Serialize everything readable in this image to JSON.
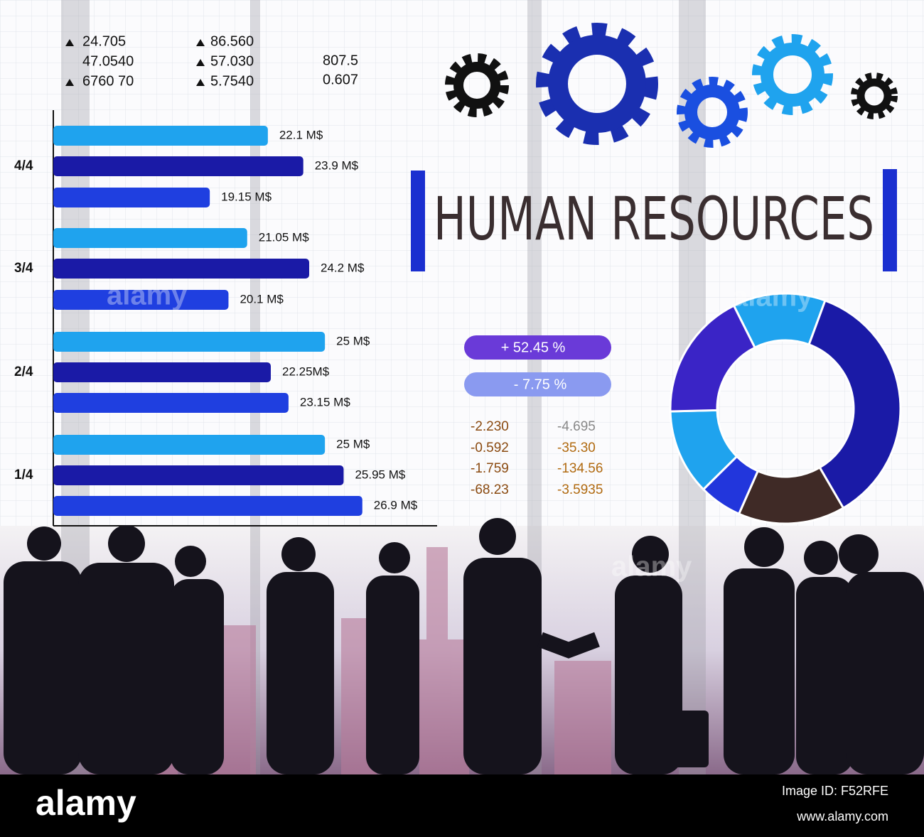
{
  "tickers": {
    "col1": [
      "24.705",
      "47.0540",
      "6760 70"
    ],
    "col2": [
      "86.560",
      "57.030",
      "5.7540"
    ],
    "col3": [
      "807.5",
      "0.607"
    ]
  },
  "chart_data": [
    {
      "type": "bar",
      "orientation": "horizontal",
      "categories": [
        null,
        "4/4",
        null,
        null,
        "3/4",
        null,
        null,
        "2/4",
        null,
        null,
        "1/4",
        null
      ],
      "values": [
        22.1,
        23.9,
        19.15,
        21.05,
        24.2,
        20.1,
        25,
        22.25,
        23.15,
        25,
        25.95,
        26.9
      ],
      "value_labels": [
        "22.1 M$",
        "23.9 M$",
        "19.15 M$",
        "21.05 M$",
        "24.2 M$",
        "20.1 M$",
        "25 M$",
        "22.25M$",
        "23.15 M$",
        "25 M$",
        "25.95 M$",
        "26.9 M$"
      ],
      "colors": [
        "#1fa3ee",
        "#1a1aa6",
        "#1f3fe0",
        "#1fa3ee",
        "#1a1aa6",
        "#1f3fe0",
        "#1fa3ee",
        "#1a1aa6",
        "#1f3fe0",
        "#1fa3ee",
        "#1a1aa6",
        "#1f3fe0"
      ],
      "xlim": [
        11.2,
        30.7
      ]
    },
    {
      "type": "pie",
      "donut": true,
      "values": [
        13,
        36,
        15,
        6,
        12,
        18
      ],
      "colors": [
        "#1fa3ee",
        "#1a1aa6",
        "#3f2a26",
        "#2236dc",
        "#1fa3ee",
        "#3a24c6"
      ]
    }
  ],
  "title": "HUMAN RESOURCES",
  "deltas": [
    "+ 52.45 %",
    "- 7.75 %"
  ],
  "figures": {
    "col1": [
      "-2.230",
      "-0.592",
      "-1.759",
      "-68.23"
    ],
    "col2": [
      "-4.695",
      "-35.30",
      "-134.56",
      "-3.5935"
    ]
  },
  "watermark": "alamy",
  "footer": {
    "logo": "alamy",
    "image_id": "Image ID: F52RFE",
    "url": "www.alamy.com"
  }
}
